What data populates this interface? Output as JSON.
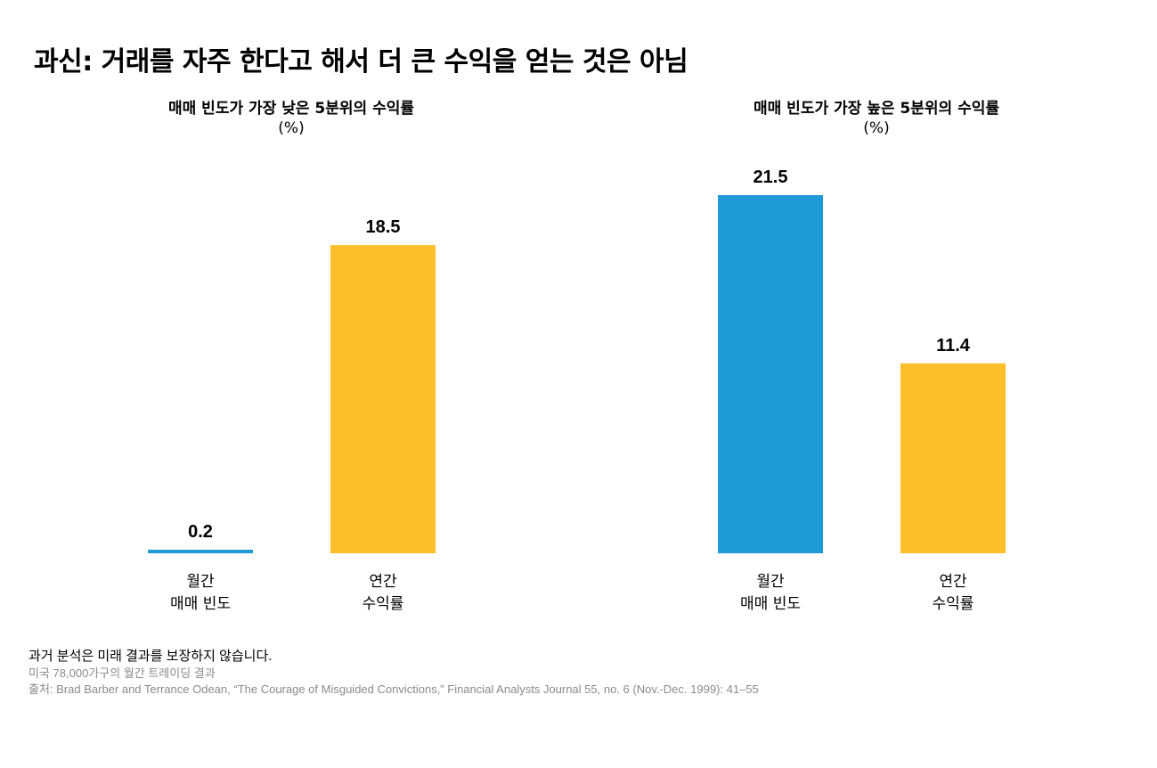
{
  "title": "과신: 거래를 자주 한다고 해서 더 큰 수익을 얻는 것은 아님",
  "panels_text": [
    {
      "title": "매매 빈도가 가장 낮은 5분위의 수익률",
      "unit": "(%)"
    },
    {
      "title": "매매 빈도가 가장 높은 5분위의 수익률",
      "unit": "(%)"
    }
  ],
  "footer": {
    "disclaimer": "과거 분석은 미래 결과를 보장하지 않습니다.",
    "note": "미국 78,000가구의 월간 트레이딩 결과",
    "source": "출처: Brad Barber and Terrance Odean, “The Courage of Misguided Convictions,” Financial Analysts Journal 55, no. 6 (Nov.-Dec. 1999): 41–55"
  },
  "colors": {
    "monthly": "#1E9BD7",
    "annual": "#FDBE2B"
  },
  "chart_data": [
    {
      "type": "bar",
      "title": "매매 빈도가 가장 낮은 5분위의 수익률",
      "subtitle": "(%)",
      "categories": [
        "월간\n매매 빈도",
        "연간\n수익률"
      ],
      "values": [
        0.2,
        18.5
      ],
      "labels": [
        "0.2",
        "18.5"
      ],
      "colors": [
        "#1E9BD7",
        "#FDBE2B"
      ],
      "ylim": [
        0,
        21.5
      ],
      "grid": false
    },
    {
      "type": "bar",
      "title": "매매 빈도가 가장 높은 5분위의 수익률",
      "subtitle": "(%)",
      "categories": [
        "월간\n매매 빈도",
        "연간\n수익률"
      ],
      "values": [
        21.5,
        11.4
      ],
      "labels": [
        "21.5",
        "11.4"
      ],
      "colors": [
        "#1E9BD7",
        "#FDBE2B"
      ],
      "ylim": [
        0,
        21.5
      ],
      "grid": false
    }
  ]
}
